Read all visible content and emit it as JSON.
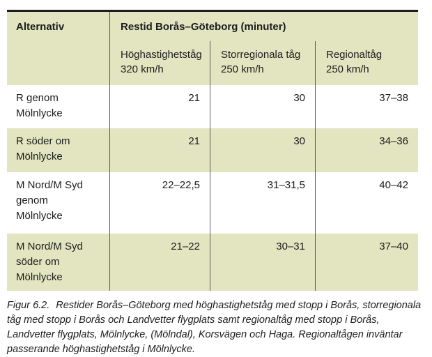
{
  "colors": {
    "row_alt": "#e2e5bf",
    "divider": "#58595b",
    "top_border": "#1e1e1e",
    "text": "#1c1c1e"
  },
  "table": {
    "corner_header": "Alternativ",
    "group_header": "Restid Borås–Göteborg (minuter)",
    "column_headers": [
      "Höghastighetståg\n320 km/h",
      "Storregionala tåg\n250 km/h",
      "Regionaltåg\n250 km/h"
    ],
    "rows": [
      {
        "label": "R genom\nMölnlycke",
        "values": [
          "21",
          "30",
          "37–38"
        ]
      },
      {
        "label": "R söder om\nMölnlycke",
        "values": [
          "21",
          "30",
          "34–36"
        ]
      },
      {
        "label": "M Nord/M Syd\ngenom\nMölnlycke",
        "values": [
          "22–22,5",
          "31–31,5",
          "40–42"
        ]
      },
      {
        "label": "M Nord/M Syd\nsöder om\nMölnlycke",
        "values": [
          "21–22",
          "30–31",
          "37–40"
        ]
      }
    ]
  },
  "caption": {
    "label": "Figur 6.2.",
    "text": "Restider Borås–Göteborg med höghastighetståg med stopp i Borås, storregionala\ntåg med stopp i Borås och Landvetter flygplats samt regionaltåg med stopp i Borås,\nLandvetter flygplats, Mölnlycke, (Mölndal), Korsvägen och Haga. Regionaltågen inväntar\npasserande höghastighetståg i Mölnlycke."
  }
}
